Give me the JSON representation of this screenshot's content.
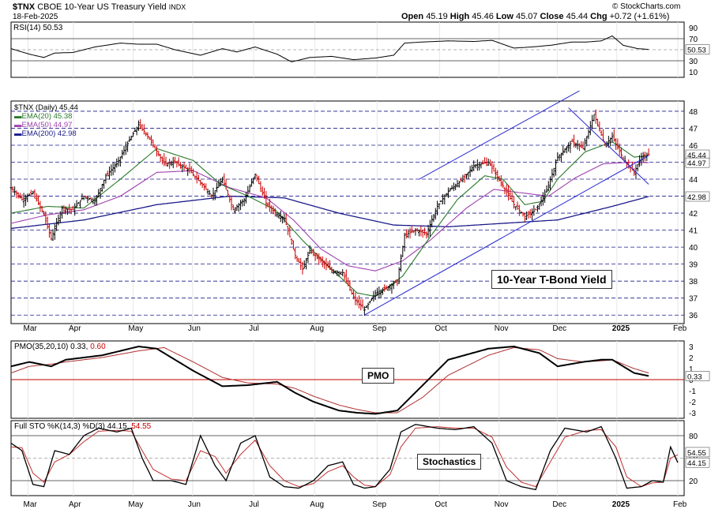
{
  "header": {
    "symbol": "$TNX",
    "name": "CBOE 10-Year US Treasury Yield",
    "exchange": "INDX",
    "date": "18-Feb-2025",
    "open_label": "Open",
    "open": "45.19",
    "high_label": "High",
    "high": "45.46",
    "low_label": "Low",
    "low": "45.07",
    "close_label": "Close",
    "close": "45.44",
    "chg_label": "Chg",
    "chg": "+0.72 (+1.61%)",
    "copyright": "© StockCharts.com"
  },
  "rsi": {
    "label": "RSI(14)",
    "value": "50.53",
    "ticks": [
      "90",
      "70",
      "50",
      "30",
      "10"
    ],
    "current_tag": "50.53"
  },
  "price": {
    "title": "$TNX (Daily)",
    "last": "45.44",
    "legend": [
      {
        "name": "EMA(20)",
        "value": "45.38",
        "color": "#2a7a2a"
      },
      {
        "name": "EMA(50)",
        "value": "44.97",
        "color": "#a040b0"
      },
      {
        "name": "EMA(200)",
        "value": "42.98",
        "color": "#1a1a8a"
      }
    ],
    "ticks": [
      "48",
      "47",
      "46",
      "45",
      "44",
      "43",
      "42",
      "41",
      "40",
      "39",
      "38",
      "37",
      "36"
    ],
    "tags": {
      "close": "45.44",
      "ema50": "44.97",
      "ema200": "42.98"
    },
    "annotation": "10-Year T-Bond Yield"
  },
  "pmo": {
    "label": "PMO(35,20,10)",
    "value": "0.33",
    "signal": "0.60",
    "ticks": [
      "3",
      "2",
      "1",
      "0",
      "-1",
      "-2",
      "-3"
    ],
    "current_tag": "0.33",
    "annotation": "PMO"
  },
  "sto": {
    "label": "Full STO %K(14,3) %D(3)",
    "k": "44.15",
    "d": "54.55",
    "ticks": [
      "80",
      "50",
      "20"
    ],
    "tag_d": "54.55",
    "tag_k": "44.15",
    "annotation": "Stochastics"
  },
  "x_axis": [
    "Mar",
    "Apr",
    "May",
    "Jun",
    "Jul",
    "Aug",
    "Sep",
    "Oct",
    "Nov",
    "Dec",
    "2025",
    "Feb"
  ],
  "colors": {
    "up": "#000000",
    "down": "#cc0000",
    "ema20": "#2a7a2a",
    "ema50": "#a040b0",
    "ema200": "#1a1a8a",
    "trend": "#2a2ad0",
    "grid": "#1a1a8a"
  },
  "chart_data": {
    "type": "line",
    "months": [
      "Mar",
      "Apr",
      "May",
      "Jun",
      "Jul",
      "Aug",
      "Sep",
      "Oct",
      "Nov",
      "Dec",
      "2025",
      "Feb"
    ],
    "price_anchors": [
      [
        0,
        43.5
      ],
      [
        6,
        42.8
      ],
      [
        12,
        43.2
      ],
      [
        18,
        41.9
      ],
      [
        22,
        40.5
      ],
      [
        28,
        42.3
      ],
      [
        34,
        42.2
      ],
      [
        40,
        43.0
      ],
      [
        46,
        42.7
      ],
      [
        52,
        44.2
      ],
      [
        58,
        44.9
      ],
      [
        66,
        46.5
      ],
      [
        70,
        47.2
      ],
      [
        74,
        46.7
      ],
      [
        78,
        46.0
      ],
      [
        84,
        44.9
      ],
      [
        90,
        45.0
      ],
      [
        98,
        44.5
      ],
      [
        104,
        43.8
      ],
      [
        110,
        43.0
      ],
      [
        116,
        44.0
      ],
      [
        122,
        42.2
      ],
      [
        128,
        42.8
      ],
      [
        134,
        44.3
      ],
      [
        140,
        42.6
      ],
      [
        146,
        41.9
      ],
      [
        150,
        41.7
      ],
      [
        156,
        39.5
      ],
      [
        160,
        38.7
      ],
      [
        164,
        39.8
      ],
      [
        170,
        39.2
      ],
      [
        176,
        38.6
      ],
      [
        182,
        38.5
      ],
      [
        188,
        37.0
      ],
      [
        194,
        36.3
      ],
      [
        200,
        37.3
      ],
      [
        206,
        37.6
      ],
      [
        212,
        38.0
      ],
      [
        216,
        40.7
      ],
      [
        222,
        41.0
      ],
      [
        228,
        40.8
      ],
      [
        234,
        42.4
      ],
      [
        240,
        43.3
      ],
      [
        248,
        44.0
      ],
      [
        254,
        44.8
      ],
      [
        262,
        45.0
      ],
      [
        270,
        43.6
      ],
      [
        276,
        42.5
      ],
      [
        282,
        41.8
      ],
      [
        288,
        42.2
      ],
      [
        294,
        43.3
      ],
      [
        300,
        45.3
      ],
      [
        308,
        46.2
      ],
      [
        314,
        45.8
      ],
      [
        320,
        47.8
      ],
      [
        326,
        46.0
      ],
      [
        330,
        46.5
      ],
      [
        336,
        45.2
      ],
      [
        342,
        44.4
      ],
      [
        346,
        45.3
      ],
      [
        350,
        45.44
      ]
    ],
    "ema20_anchors": [
      [
        0,
        42.0
      ],
      [
        20,
        42.4
      ],
      [
        40,
        42.3
      ],
      [
        60,
        44.0
      ],
      [
        80,
        45.8
      ],
      [
        100,
        45.1
      ],
      [
        115,
        43.7
      ],
      [
        130,
        43.0
      ],
      [
        145,
        42.2
      ],
      [
        160,
        40.4
      ],
      [
        175,
        38.8
      ],
      [
        190,
        37.3
      ],
      [
        200,
        37.1
      ],
      [
        215,
        38.3
      ],
      [
        230,
        40.6
      ],
      [
        245,
        42.8
      ],
      [
        260,
        44.2
      ],
      [
        270,
        44.0
      ],
      [
        282,
        42.5
      ],
      [
        292,
        42.7
      ],
      [
        300,
        44.0
      ],
      [
        315,
        45.6
      ],
      [
        330,
        46.2
      ],
      [
        342,
        45.3
      ],
      [
        350,
        45.38
      ]
    ],
    "ema50_anchors": [
      [
        0,
        41.4
      ],
      [
        20,
        41.9
      ],
      [
        40,
        42.2
      ],
      [
        60,
        43.0
      ],
      [
        80,
        44.4
      ],
      [
        100,
        44.5
      ],
      [
        120,
        43.5
      ],
      [
        140,
        42.9
      ],
      [
        155,
        41.6
      ],
      [
        170,
        39.9
      ],
      [
        185,
        38.9
      ],
      [
        200,
        38.6
      ],
      [
        215,
        39.2
      ],
      [
        230,
        40.4
      ],
      [
        250,
        42.3
      ],
      [
        265,
        43.4
      ],
      [
        280,
        43.2
      ],
      [
        295,
        43.0
      ],
      [
        310,
        44.1
      ],
      [
        325,
        44.9
      ],
      [
        340,
        45.0
      ],
      [
        350,
        44.97
      ]
    ],
    "ema200_anchors": [
      [
        0,
        41.1
      ],
      [
        40,
        41.6
      ],
      [
        80,
        42.5
      ],
      [
        120,
        43.0
      ],
      [
        150,
        42.9
      ],
      [
        180,
        42.0
      ],
      [
        210,
        41.3
      ],
      [
        240,
        41.2
      ],
      [
        270,
        41.4
      ],
      [
        300,
        41.6
      ],
      [
        330,
        42.4
      ],
      [
        350,
        42.98
      ]
    ],
    "rsi_anchors": [
      [
        0,
        52
      ],
      [
        10,
        42
      ],
      [
        18,
        36
      ],
      [
        24,
        44
      ],
      [
        34,
        45
      ],
      [
        46,
        55
      ],
      [
        60,
        62
      ],
      [
        70,
        60
      ],
      [
        80,
        60
      ],
      [
        90,
        50
      ],
      [
        104,
        40
      ],
      [
        116,
        52
      ],
      [
        124,
        46
      ],
      [
        134,
        55
      ],
      [
        146,
        42
      ],
      [
        154,
        28
      ],
      [
        164,
        36
      ],
      [
        176,
        38
      ],
      [
        188,
        32
      ],
      [
        200,
        35
      ],
      [
        210,
        40
      ],
      [
        216,
        62
      ],
      [
        226,
        64
      ],
      [
        240,
        66
      ],
      [
        254,
        65
      ],
      [
        264,
        67
      ],
      [
        276,
        53
      ],
      [
        286,
        55
      ],
      [
        296,
        58
      ],
      [
        308,
        64
      ],
      [
        316,
        64
      ],
      [
        324,
        66
      ],
      [
        330,
        75
      ],
      [
        336,
        58
      ],
      [
        344,
        52
      ],
      [
        350,
        50.53
      ]
    ],
    "pmo_anchors": [
      [
        0,
        1.2
      ],
      [
        10,
        1.6
      ],
      [
        22,
        1.2
      ],
      [
        30,
        1.8
      ],
      [
        50,
        2.2
      ],
      [
        70,
        3.0
      ],
      [
        80,
        2.8
      ],
      [
        100,
        0.8
      ],
      [
        116,
        -0.6
      ],
      [
        130,
        -0.5
      ],
      [
        146,
        -0.2
      ],
      [
        156,
        -1.2
      ],
      [
        166,
        -2.0
      ],
      [
        180,
        -2.8
      ],
      [
        190,
        -3.0
      ],
      [
        200,
        -3.1
      ],
      [
        212,
        -2.8
      ],
      [
        226,
        -0.5
      ],
      [
        240,
        1.8
      ],
      [
        262,
        2.8
      ],
      [
        276,
        3.0
      ],
      [
        290,
        2.4
      ],
      [
        300,
        1.2
      ],
      [
        314,
        1.6
      ],
      [
        324,
        1.8
      ],
      [
        330,
        1.8
      ],
      [
        342,
        0.6
      ],
      [
        350,
        0.33
      ]
    ],
    "pmo_signal_anchors": [
      [
        0,
        0.6
      ],
      [
        10,
        1.2
      ],
      [
        22,
        1.4
      ],
      [
        30,
        1.6
      ],
      [
        50,
        2.0
      ],
      [
        70,
        2.6
      ],
      [
        84,
        2.9
      ],
      [
        100,
        1.6
      ],
      [
        116,
        0.2
      ],
      [
        130,
        -0.3
      ],
      [
        146,
        -0.4
      ],
      [
        156,
        -0.8
      ],
      [
        166,
        -1.5
      ],
      [
        180,
        -2.3
      ],
      [
        190,
        -2.7
      ],
      [
        200,
        -3.0
      ],
      [
        212,
        -3.0
      ],
      [
        226,
        -1.6
      ],
      [
        240,
        0.4
      ],
      [
        262,
        2.2
      ],
      [
        276,
        2.9
      ],
      [
        290,
        2.7
      ],
      [
        300,
        1.9
      ],
      [
        314,
        1.6
      ],
      [
        324,
        1.7
      ],
      [
        330,
        1.8
      ],
      [
        342,
        1.0
      ],
      [
        350,
        0.6
      ]
    ],
    "sto_k_anchors": [
      [
        0,
        70
      ],
      [
        6,
        60
      ],
      [
        12,
        15
      ],
      [
        18,
        12
      ],
      [
        24,
        60
      ],
      [
        32,
        55
      ],
      [
        40,
        80
      ],
      [
        48,
        90
      ],
      [
        58,
        85
      ],
      [
        66,
        90
      ],
      [
        72,
        50
      ],
      [
        78,
        20
      ],
      [
        88,
        20
      ],
      [
        96,
        15
      ],
      [
        104,
        80
      ],
      [
        112,
        40
      ],
      [
        118,
        20
      ],
      [
        126,
        70
      ],
      [
        134,
        80
      ],
      [
        142,
        25
      ],
      [
        150,
        12
      ],
      [
        158,
        10
      ],
      [
        166,
        20
      ],
      [
        174,
        40
      ],
      [
        182,
        45
      ],
      [
        188,
        15
      ],
      [
        194,
        10
      ],
      [
        200,
        12
      ],
      [
        208,
        35
      ],
      [
        214,
        85
      ],
      [
        222,
        95
      ],
      [
        234,
        90
      ],
      [
        244,
        88
      ],
      [
        254,
        92
      ],
      [
        264,
        70
      ],
      [
        272,
        20
      ],
      [
        280,
        12
      ],
      [
        288,
        8
      ],
      [
        296,
        60
      ],
      [
        304,
        90
      ],
      [
        316,
        85
      ],
      [
        324,
        92
      ],
      [
        332,
        50
      ],
      [
        338,
        10
      ],
      [
        346,
        12
      ],
      [
        352,
        20
      ],
      [
        358,
        18
      ],
      [
        362,
        65
      ],
      [
        366,
        44
      ]
    ],
    "sto_d_anchors": [
      [
        0,
        65
      ],
      [
        6,
        64
      ],
      [
        12,
        30
      ],
      [
        18,
        18
      ],
      [
        24,
        45
      ],
      [
        32,
        55
      ],
      [
        40,
        72
      ],
      [
        48,
        86
      ],
      [
        58,
        87
      ],
      [
        66,
        86
      ],
      [
        72,
        60
      ],
      [
        78,
        35
      ],
      [
        88,
        22
      ],
      [
        96,
        20
      ],
      [
        104,
        60
      ],
      [
        112,
        52
      ],
      [
        118,
        30
      ],
      [
        126,
        55
      ],
      [
        134,
        74
      ],
      [
        142,
        40
      ],
      [
        150,
        20
      ],
      [
        158,
        12
      ],
      [
        166,
        16
      ],
      [
        174,
        32
      ],
      [
        182,
        40
      ],
      [
        188,
        25
      ],
      [
        194,
        14
      ],
      [
        200,
        12
      ],
      [
        208,
        28
      ],
      [
        214,
        65
      ],
      [
        222,
        90
      ],
      [
        234,
        92
      ],
      [
        244,
        90
      ],
      [
        254,
        90
      ],
      [
        264,
        78
      ],
      [
        272,
        38
      ],
      [
        280,
        18
      ],
      [
        288,
        12
      ],
      [
        296,
        45
      ],
      [
        304,
        78
      ],
      [
        316,
        87
      ],
      [
        324,
        88
      ],
      [
        332,
        65
      ],
      [
        338,
        25
      ],
      [
        346,
        12
      ],
      [
        352,
        17
      ],
      [
        358,
        18
      ],
      [
        362,
        50
      ],
      [
        366,
        54.55
      ]
    ]
  }
}
